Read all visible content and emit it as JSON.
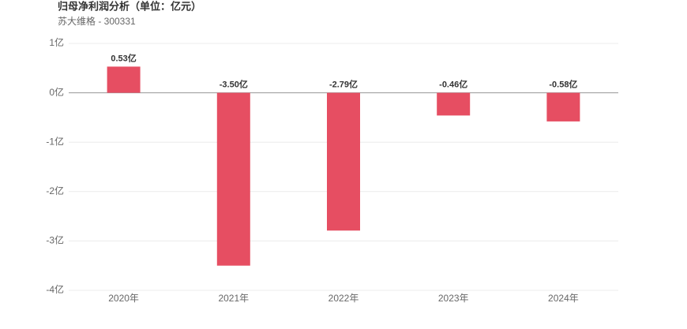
{
  "chart_data": {
    "type": "bar",
    "title": "归母净利润分析（单位：亿元）",
    "subtitle": "苏大维格 - 300331",
    "categories": [
      "2020年",
      "2021年",
      "2022年",
      "2023年",
      "2024年"
    ],
    "values": [
      0.53,
      -3.5,
      -2.79,
      -0.46,
      -0.58
    ],
    "value_labels": [
      "0.53亿",
      "-3.50亿",
      "-2.79亿",
      "-0.46亿",
      "-0.58亿"
    ],
    "color": "#e64e62",
    "ylim": [
      -4,
      1
    ],
    "yticks": [
      {
        "value": 1,
        "label": "1亿"
      },
      {
        "value": 0,
        "label": "0亿"
      },
      {
        "value": -1,
        "label": "-1亿"
      },
      {
        "value": -2,
        "label": "-2亿"
      },
      {
        "value": -3,
        "label": "-3亿"
      },
      {
        "value": -4,
        "label": "-4亿"
      }
    ],
    "grid": true
  }
}
